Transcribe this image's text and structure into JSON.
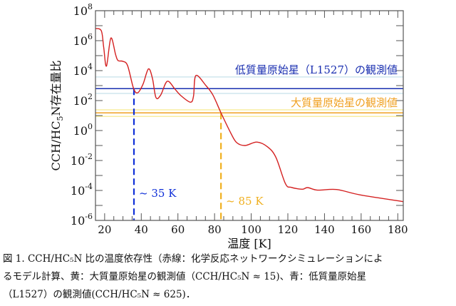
{
  "chart_data": {
    "type": "line",
    "xlabel": "温度 [K]",
    "ylabel": "CCH/HC5N存在量比",
    "ylabel_parts": {
      "pre": "CCH/HC",
      "sub": "5",
      "post": "N存在量比"
    },
    "xlim": [
      15,
      183
    ],
    "ylim": [
      1e-06,
      100000000.0
    ],
    "yscale": "log",
    "xticks": [
      20,
      40,
      60,
      80,
      100,
      120,
      140,
      160,
      180
    ],
    "yticks": [
      {
        "base": "10",
        "exp": "8"
      },
      {
        "base": "10",
        "exp": "6"
      },
      {
        "base": "10",
        "exp": "4"
      },
      {
        "base": "10",
        "exp": "2"
      },
      {
        "base": "10",
        "exp": "0"
      },
      {
        "base": "10",
        "exp": "-2"
      },
      {
        "base": "10",
        "exp": "-4"
      },
      {
        "base": "10",
        "exp": "-6"
      }
    ],
    "grid": false,
    "series": [
      {
        "color": "#d42020",
        "x": [
          15,
          18.2,
          19.5,
          21,
          23.4,
          26,
          27.3,
          29.8,
          32.5,
          35.7,
          38,
          40.9,
          43.9,
          46.1,
          48,
          50.6,
          54.2,
          58.4,
          61.6,
          66.8,
          68.5,
          69.8,
          75.3,
          79.1,
          83.7,
          88.9,
          92.1,
          96.7,
          103.1,
          109,
          113.5,
          118.7,
          121.9,
          127.8,
          130.8,
          136.2,
          146.6,
          159.6,
          183
        ],
        "y": [
          6500000.0,
          4500000.0,
          350000.0,
          20000.0,
          1500000.0,
          115000.0,
          47000.0,
          42000.0,
          22000.0,
          700,
          330,
          1200,
          13000.0,
          3000,
          160,
          235,
          1950,
          575,
          215,
          78,
          195,
          4700,
          1000,
          235,
          13.5,
          0.66,
          0.155,
          0.1,
          0.17,
          0.08,
          0.016,
          0.00028,
          0.00016,
          0.00012,
          0.000155,
          0.000105,
          0.000115,
          5e-05,
          1.8e-05
        ]
      }
    ],
    "reference_lines": [
      {
        "label": "低質量原始星（L1527）の観測値",
        "value": 625,
        "band": [
          300,
          3800
        ],
        "color": "#1a2fb0",
        "band_color": "#cfe6ee"
      },
      {
        "label": "大質量原始星の観測値",
        "value": 15,
        "band": [
          8.7,
          24
        ],
        "color": "#f0a020",
        "band_color": "#f8eda0"
      }
    ],
    "vertical_markers": [
      {
        "x": 36,
        "label": "~ 35 K",
        "color": "#1030d8"
      },
      {
        "x": 83.5,
        "label": "~ 85 K",
        "color": "#f0b020"
      }
    ]
  },
  "caption": {
    "lines": [
      "図 1. CCH/HC₅N 比の温度依存性（赤線：化学反応ネットワークシミュレーションによ",
      "るモデル計算、黄：大質量原始星の観測値（CCH/HC₅N ≈ 15)、青：低質量原始星",
      "（L1527）の観測値(CCH/HC₅N ≈ 625)．"
    ]
  }
}
